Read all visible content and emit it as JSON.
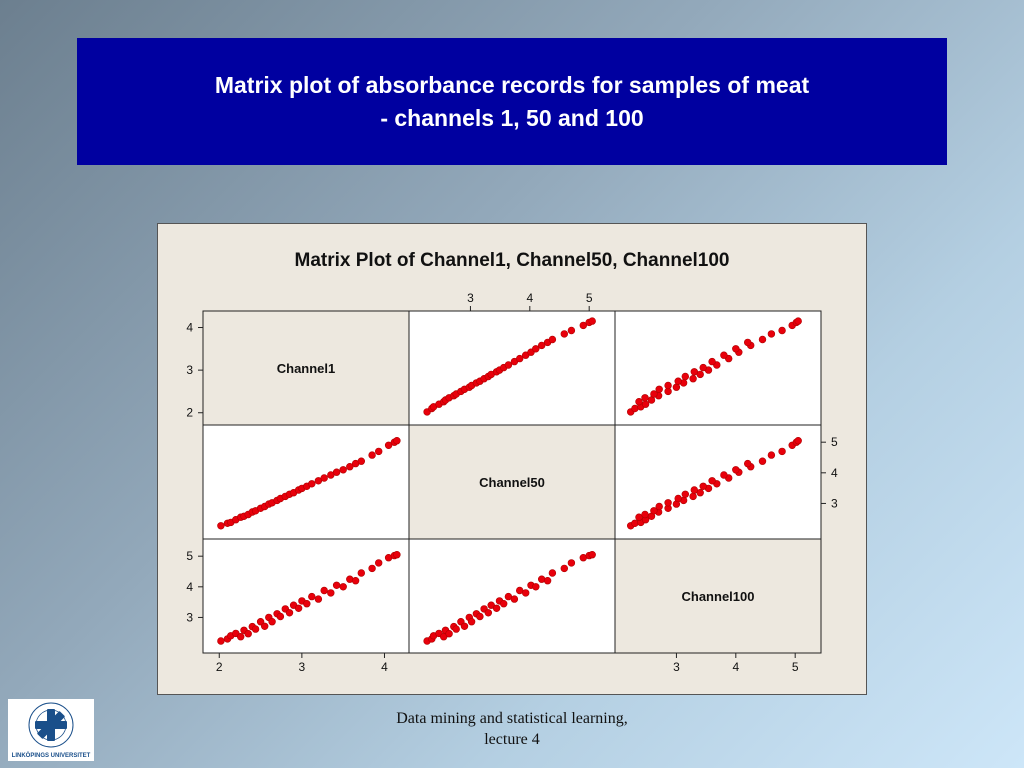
{
  "slide": {
    "title_line1": "Matrix plot of absorbance records for samples of meat",
    "title_line2": "- channels 1, 50 and 100",
    "footer_line1": "Data mining and statistical learning,",
    "footer_line2": "lecture 4",
    "logo_text": "LINKÖPINGS UNIVERSITET"
  },
  "colors": {
    "banner": "#0000a0",
    "marker": "#e8000b",
    "diagonal_panel": "#ede8df",
    "plot_panel": "#ffffff"
  },
  "chart_data": {
    "type": "scatter",
    "subtype": "scatter-matrix",
    "title": "Matrix Plot of Channel1, Channel50, Channel100",
    "variables": [
      "Channel1",
      "Channel50",
      "Channel100"
    ],
    "ranges": {
      "Channel1": [
        1.9,
        4.2
      ],
      "Channel50": [
        2.1,
        5.3
      ],
      "Channel100": [
        2.1,
        5.3
      ]
    },
    "ticks": {
      "Channel1": [
        2,
        3,
        4
      ],
      "Channel50": [
        3,
        4,
        5
      ],
      "Channel100": [
        3,
        4,
        5
      ]
    },
    "marker": "filled-circle",
    "grid": false,
    "legend": "none",
    "samples": [
      {
        "c1": 2.02,
        "c50": 2.27,
        "c100": 2.23
      },
      {
        "c1": 2.1,
        "c50": 2.35,
        "c100": 2.3
      },
      {
        "c1": 2.14,
        "c50": 2.38,
        "c100": 2.4
      },
      {
        "c1": 2.2,
        "c50": 2.47,
        "c100": 2.48
      },
      {
        "c1": 2.26,
        "c50": 2.55,
        "c100": 2.37
      },
      {
        "c1": 2.3,
        "c50": 2.58,
        "c100": 2.58
      },
      {
        "c1": 2.35,
        "c50": 2.64,
        "c100": 2.47
      },
      {
        "c1": 2.4,
        "c50": 2.72,
        "c100": 2.7
      },
      {
        "c1": 2.44,
        "c50": 2.76,
        "c100": 2.62
      },
      {
        "c1": 2.5,
        "c50": 2.84,
        "c100": 2.86
      },
      {
        "c1": 2.55,
        "c50": 2.9,
        "c100": 2.71
      },
      {
        "c1": 2.6,
        "c50": 2.98,
        "c100": 3.0
      },
      {
        "c1": 2.64,
        "c50": 3.02,
        "c100": 2.86
      },
      {
        "c1": 2.7,
        "c50": 3.1,
        "c100": 3.12
      },
      {
        "c1": 2.74,
        "c50": 3.16,
        "c100": 3.03
      },
      {
        "c1": 2.8,
        "c50": 3.23,
        "c100": 3.28
      },
      {
        "c1": 2.85,
        "c50": 3.3,
        "c100": 3.15
      },
      {
        "c1": 2.9,
        "c50": 3.35,
        "c100": 3.4
      },
      {
        "c1": 2.96,
        "c50": 3.44,
        "c100": 3.3
      },
      {
        "c1": 3.0,
        "c50": 3.49,
        "c100": 3.54
      },
      {
        "c1": 3.06,
        "c50": 3.56,
        "c100": 3.45
      },
      {
        "c1": 3.12,
        "c50": 3.64,
        "c100": 3.68
      },
      {
        "c1": 3.2,
        "c50": 3.74,
        "c100": 3.6
      },
      {
        "c1": 3.27,
        "c50": 3.83,
        "c100": 3.88
      },
      {
        "c1": 3.35,
        "c50": 3.93,
        "c100": 3.8
      },
      {
        "c1": 3.42,
        "c50": 4.02,
        "c100": 4.05
      },
      {
        "c1": 3.5,
        "c50": 4.1,
        "c100": 4.0
      },
      {
        "c1": 3.58,
        "c50": 4.2,
        "c100": 4.25
      },
      {
        "c1": 3.65,
        "c50": 4.3,
        "c100": 4.2
      },
      {
        "c1": 3.72,
        "c50": 4.38,
        "c100": 4.45
      },
      {
        "c1": 3.85,
        "c50": 4.58,
        "c100": 4.6
      },
      {
        "c1": 3.93,
        "c50": 4.7,
        "c100": 4.78
      },
      {
        "c1": 4.05,
        "c50": 4.9,
        "c100": 4.95
      },
      {
        "c1": 4.12,
        "c50": 5.0,
        "c100": 5.02
      },
      {
        "c1": 4.15,
        "c50": 5.05,
        "c100": 5.05
      }
    ]
  }
}
